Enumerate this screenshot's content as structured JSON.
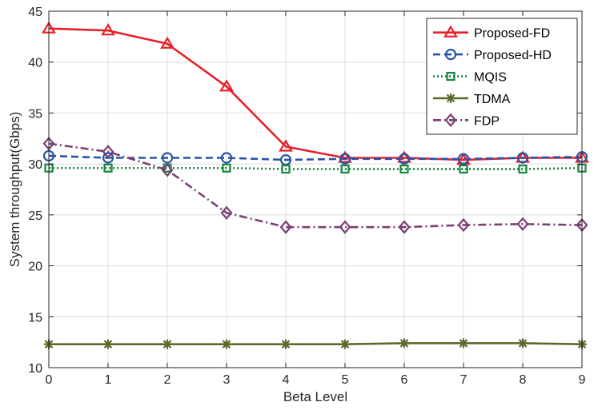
{
  "chart_data": {
    "type": "line",
    "title": "",
    "xlabel": "Beta Level",
    "ylabel": "System throughput(Gbps)",
    "xlim": [
      0,
      9
    ],
    "ylim": [
      10,
      45
    ],
    "grid": true,
    "legend_position": "top-right",
    "x": [
      0,
      1,
      2,
      3,
      4,
      5,
      6,
      7,
      8,
      9
    ],
    "x_ticks": [
      "0",
      "1",
      "2",
      "3",
      "4",
      "5",
      "6",
      "7",
      "8",
      "9"
    ],
    "y_ticks": [
      "10",
      "15",
      "20",
      "25",
      "30",
      "35",
      "40",
      "45"
    ],
    "series": [
      {
        "name": "Proposed-FD",
        "color": "#e8202a",
        "dash": "solid",
        "marker": "triangle",
        "values": [
          43.3,
          43.1,
          41.8,
          37.6,
          31.7,
          30.6,
          30.6,
          30.4,
          30.6,
          30.6
        ]
      },
      {
        "name": "Proposed-HD",
        "color": "#2a53a8",
        "dash": "dashed",
        "marker": "circle",
        "values": [
          30.8,
          30.6,
          30.6,
          30.6,
          30.4,
          30.5,
          30.5,
          30.5,
          30.6,
          30.7
        ]
      },
      {
        "name": "MQIS",
        "color": "#138a3c",
        "dash": "dotted",
        "marker": "square",
        "values": [
          29.6,
          29.6,
          29.6,
          29.6,
          29.5,
          29.5,
          29.5,
          29.5,
          29.5,
          29.6
        ]
      },
      {
        "name": "TDMA",
        "color": "#5a6b2c",
        "dash": "solid",
        "marker": "asterisk",
        "values": [
          12.3,
          12.3,
          12.3,
          12.3,
          12.3,
          12.3,
          12.4,
          12.4,
          12.4,
          12.3
        ]
      },
      {
        "name": "FDP",
        "color": "#7b3f72",
        "dash": "dashdot",
        "marker": "diamond",
        "values": [
          32.0,
          31.2,
          29.4,
          25.2,
          23.8,
          23.8,
          23.8,
          24.0,
          24.1,
          24.0
        ]
      }
    ]
  }
}
